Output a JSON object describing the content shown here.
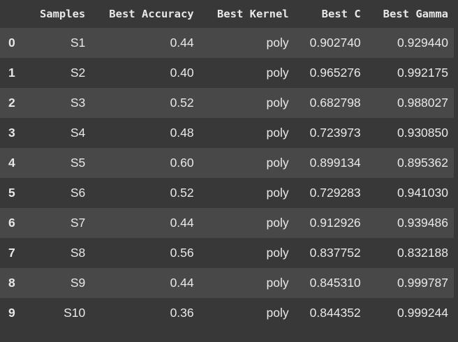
{
  "table": {
    "columns": [
      "",
      "Samples",
      "Best Accuracy",
      "Best Kernel",
      "Best C",
      "Best Gamma"
    ],
    "rows": [
      {
        "index": "0",
        "samples": "S1",
        "accuracy": "0.44",
        "kernel": "poly",
        "c": "0.902740",
        "gamma": "0.929440"
      },
      {
        "index": "1",
        "samples": "S2",
        "accuracy": "0.40",
        "kernel": "poly",
        "c": "0.965276",
        "gamma": "0.992175"
      },
      {
        "index": "2",
        "samples": "S3",
        "accuracy": "0.52",
        "kernel": "poly",
        "c": "0.682798",
        "gamma": "0.988027"
      },
      {
        "index": "3",
        "samples": "S4",
        "accuracy": "0.48",
        "kernel": "poly",
        "c": "0.723973",
        "gamma": "0.930850"
      },
      {
        "index": "4",
        "samples": "S5",
        "accuracy": "0.60",
        "kernel": "poly",
        "c": "0.899134",
        "gamma": "0.895362"
      },
      {
        "index": "5",
        "samples": "S6",
        "accuracy": "0.52",
        "kernel": "poly",
        "c": "0.729283",
        "gamma": "0.941030"
      },
      {
        "index": "6",
        "samples": "S7",
        "accuracy": "0.44",
        "kernel": "poly",
        "c": "0.912926",
        "gamma": "0.939486"
      },
      {
        "index": "7",
        "samples": "S8",
        "accuracy": "0.56",
        "kernel": "poly",
        "c": "0.837752",
        "gamma": "0.832188"
      },
      {
        "index": "8",
        "samples": "S9",
        "accuracy": "0.44",
        "kernel": "poly",
        "c": "0.845310",
        "gamma": "0.999787"
      },
      {
        "index": "9",
        "samples": "S10",
        "accuracy": "0.36",
        "kernel": "poly",
        "c": "0.844352",
        "gamma": "0.999244"
      }
    ]
  },
  "colors": {
    "background": "#383838",
    "stripe": "#484848",
    "text": "#e8e8e8"
  }
}
